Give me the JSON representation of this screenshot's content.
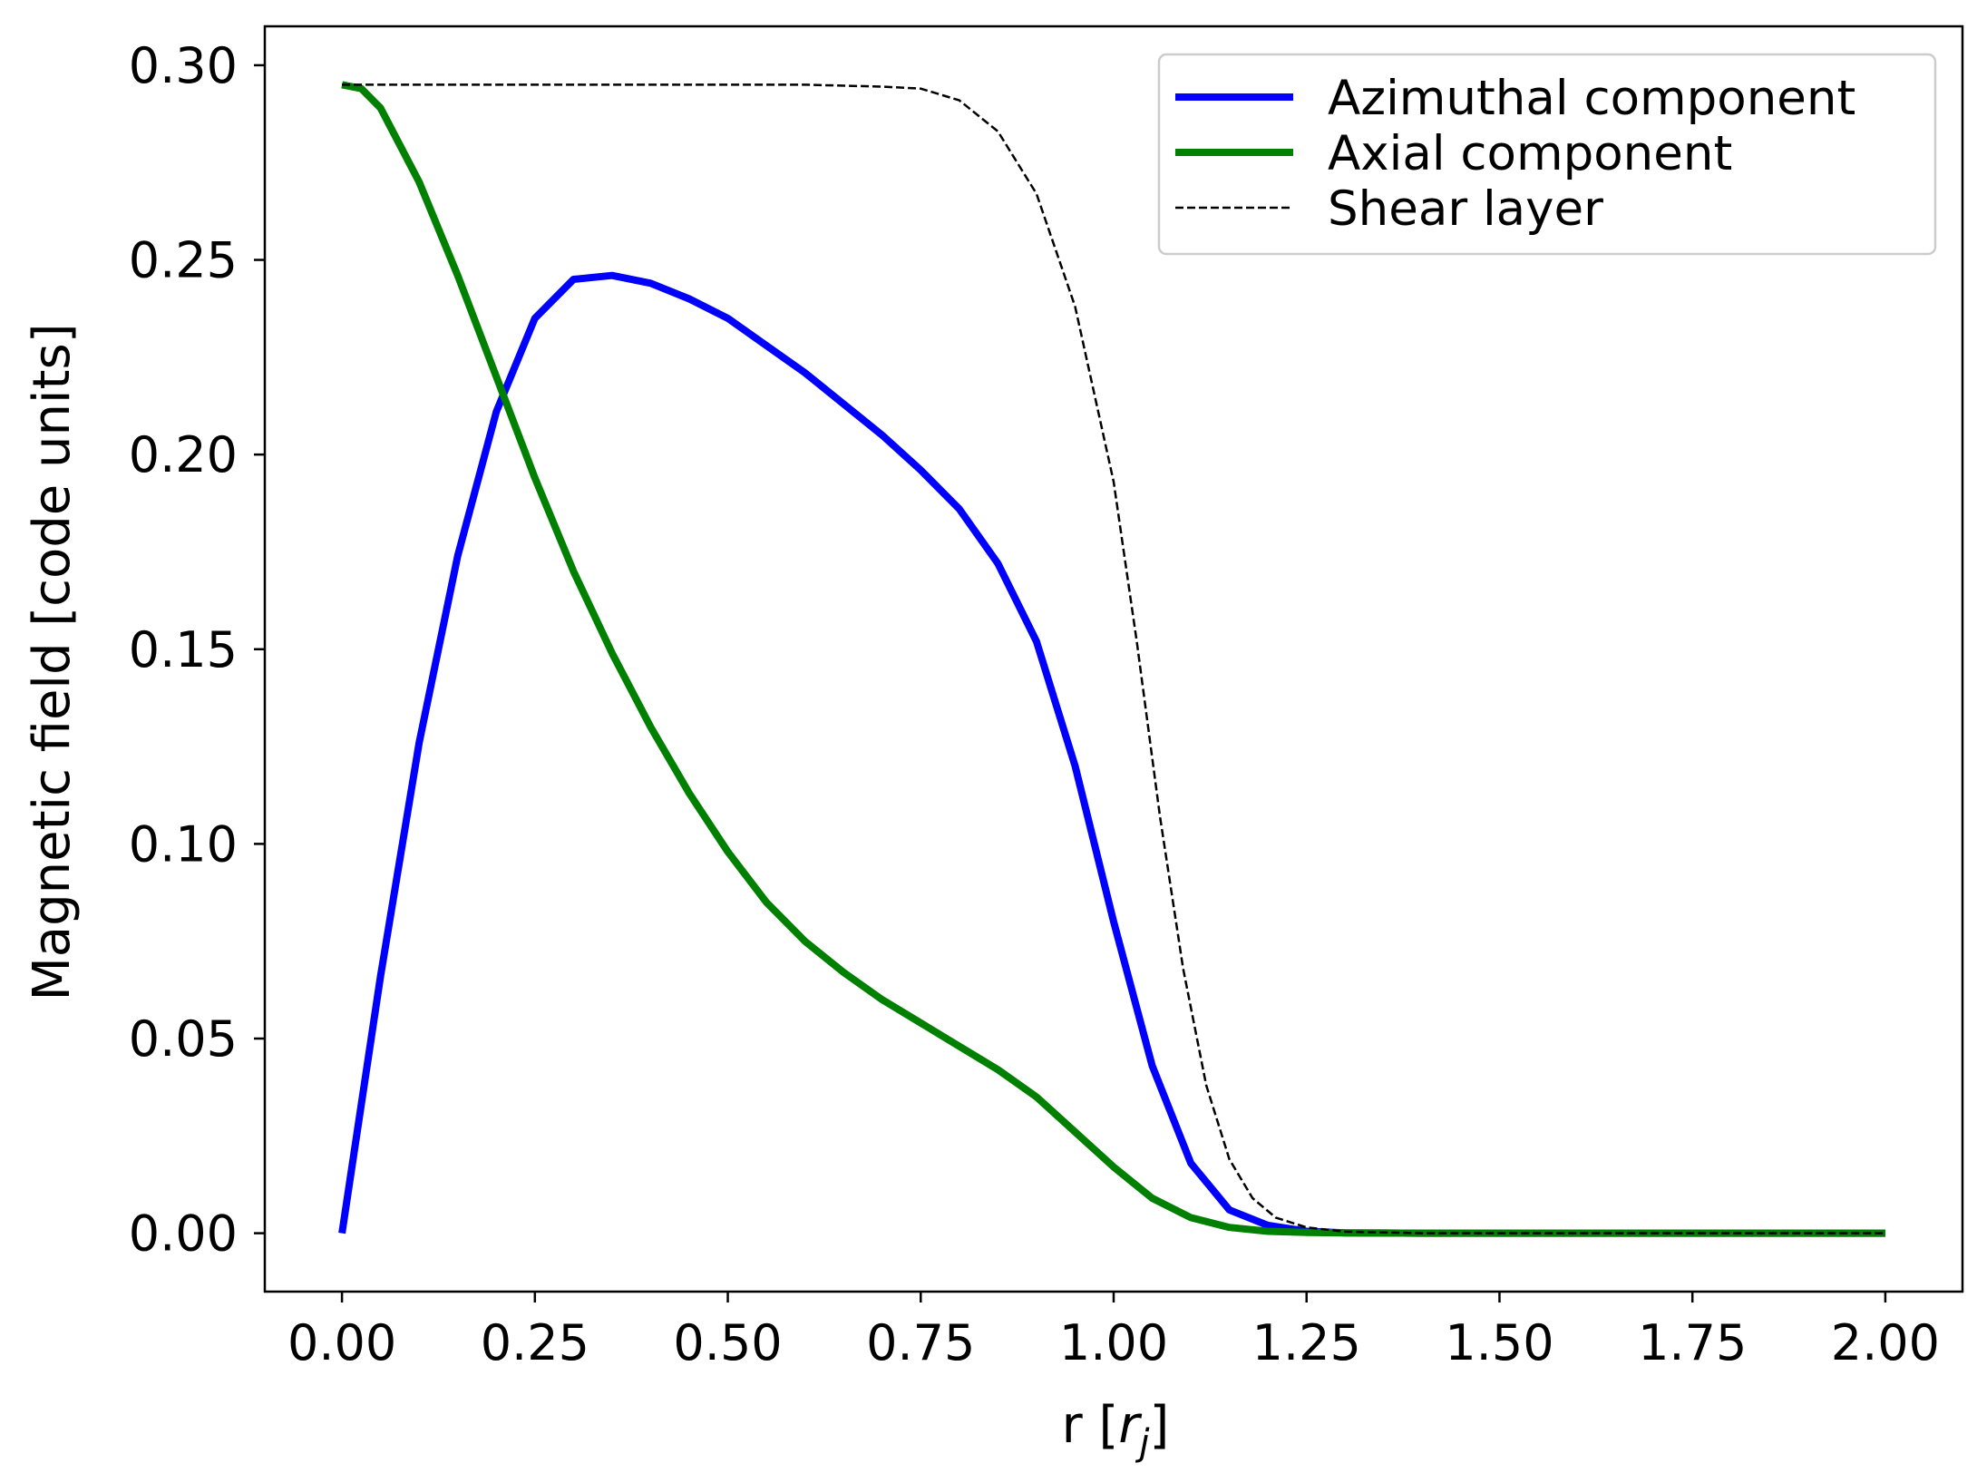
{
  "chart_data": {
    "type": "line",
    "xlabel": "r [",
    "xlabel_symbol": "r",
    "xlabel_subscript": "j",
    "xlabel_close": "]",
    "ylabel": "Magnetic field [code units]",
    "xlim": [
      -0.1,
      2.1
    ],
    "ylim": [
      -0.015,
      0.31
    ],
    "x_ticks": [
      0.0,
      0.25,
      0.5,
      0.75,
      1.0,
      1.25,
      1.5,
      1.75,
      2.0
    ],
    "x_tick_labels": [
      "0.00",
      "0.25",
      "0.50",
      "0.75",
      "1.00",
      "1.25",
      "1.50",
      "1.75",
      "2.00"
    ],
    "y_ticks": [
      0.0,
      0.05,
      0.1,
      0.15,
      0.2,
      0.25,
      0.3
    ],
    "y_tick_labels": [
      "0.00",
      "0.05",
      "0.10",
      "0.15",
      "0.20",
      "0.25",
      "0.30"
    ],
    "grid": false,
    "legend_position": "top-right",
    "series": [
      {
        "name": "Azimuthal component",
        "color": "#0000ff",
        "style": "solid",
        "x": [
          0.0,
          0.05,
          0.1,
          0.15,
          0.2,
          0.25,
          0.3,
          0.35,
          0.4,
          0.45,
          0.5,
          0.55,
          0.6,
          0.65,
          0.7,
          0.75,
          0.8,
          0.85,
          0.9,
          0.95,
          1.0,
          1.05,
          1.1,
          1.15,
          1.2,
          1.25,
          1.3,
          1.4,
          1.5,
          1.6,
          1.7,
          1.8,
          1.9,
          2.0
        ],
        "y": [
          0.0,
          0.066,
          0.126,
          0.174,
          0.211,
          0.235,
          0.245,
          0.246,
          0.244,
          0.24,
          0.235,
          0.228,
          0.221,
          0.213,
          0.205,
          0.196,
          0.186,
          0.172,
          0.152,
          0.12,
          0.08,
          0.043,
          0.018,
          0.006,
          0.002,
          0.0005,
          0.0001,
          0.0,
          0.0,
          0.0,
          0.0,
          0.0,
          0.0,
          0.0
        ]
      },
      {
        "name": "Axial component",
        "color": "#008000",
        "style": "solid",
        "x": [
          0.0,
          0.025,
          0.05,
          0.1,
          0.15,
          0.2,
          0.25,
          0.3,
          0.35,
          0.4,
          0.45,
          0.5,
          0.55,
          0.6,
          0.65,
          0.7,
          0.75,
          0.8,
          0.85,
          0.9,
          0.95,
          1.0,
          1.05,
          1.1,
          1.15,
          1.2,
          1.25,
          1.3,
          1.4,
          1.5,
          1.6,
          1.7,
          1.8,
          1.9,
          2.0
        ],
        "y": [
          0.295,
          0.294,
          0.289,
          0.27,
          0.246,
          0.22,
          0.194,
          0.17,
          0.149,
          0.13,
          0.113,
          0.098,
          0.085,
          0.075,
          0.067,
          0.06,
          0.054,
          0.048,
          0.042,
          0.035,
          0.026,
          0.017,
          0.009,
          0.004,
          0.0015,
          0.0005,
          0.0002,
          0.0001,
          0.0,
          0.0,
          0.0,
          0.0,
          0.0,
          0.0,
          0.0
        ]
      },
      {
        "name": "Shear layer",
        "color": "#000000",
        "style": "dashed",
        "x": [
          0.0,
          0.2,
          0.4,
          0.6,
          0.7,
          0.75,
          0.8,
          0.85,
          0.9,
          0.95,
          1.0,
          1.03,
          1.06,
          1.09,
          1.12,
          1.15,
          1.18,
          1.21,
          1.25,
          1.3,
          1.4,
          1.6,
          1.8,
          2.0
        ],
        "y": [
          0.295,
          0.295,
          0.295,
          0.295,
          0.2945,
          0.294,
          0.291,
          0.283,
          0.267,
          0.238,
          0.193,
          0.152,
          0.107,
          0.068,
          0.038,
          0.019,
          0.009,
          0.004,
          0.0015,
          0.0004,
          0.0,
          0.0,
          0.0,
          0.0
        ]
      }
    ]
  }
}
